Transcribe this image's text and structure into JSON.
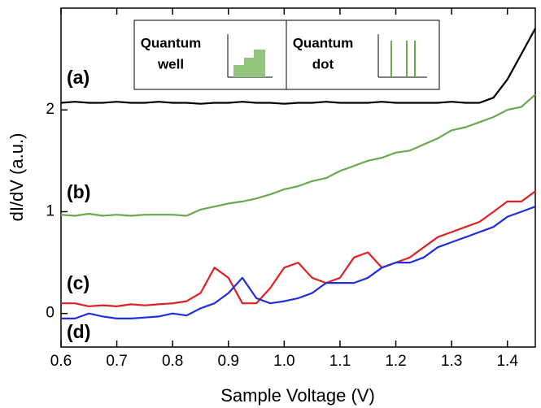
{
  "chart_data": {
    "type": "line",
    "x_label": "Sample Voltage (V)",
    "y_label": "dI/dV (a.u.)",
    "xlim": [
      0.6,
      1.45
    ],
    "ylim": [
      -0.33,
      3.0
    ],
    "xticks": [
      0.6,
      0.7,
      0.8,
      0.9,
      {
        "value": 1,
        "label": "1.0"
      },
      1.1,
      1.2,
      1.3,
      1.4
    ],
    "yticks": [
      0,
      1,
      2
    ],
    "x": [
      0.6,
      0.625,
      0.65,
      0.675,
      0.7,
      0.725,
      0.75,
      0.775,
      0.8,
      0.825,
      0.85,
      0.875,
      0.9,
      0.925,
      0.95,
      0.975,
      1.0,
      1.025,
      1.05,
      1.075,
      1.1,
      1.125,
      1.15,
      1.175,
      1.2,
      1.225,
      1.25,
      1.275,
      1.3,
      1.325,
      1.35,
      1.375,
      1.4,
      1.425,
      1.45
    ],
    "series": [
      {
        "name": "(a)",
        "color": "#000000",
        "values": [
          2.07,
          2.08,
          2.07,
          2.07,
          2.08,
          2.07,
          2.07,
          2.08,
          2.07,
          2.07,
          2.06,
          2.07,
          2.07,
          2.08,
          2.07,
          2.07,
          2.06,
          2.07,
          2.07,
          2.08,
          2.07,
          2.07,
          2.07,
          2.08,
          2.07,
          2.07,
          2.07,
          2.07,
          2.08,
          2.07,
          2.07,
          2.12,
          2.3,
          2.55,
          2.8
        ]
      },
      {
        "name": "(b)",
        "color": "#6aa84f",
        "values": [
          0.97,
          0.96,
          0.98,
          0.96,
          0.97,
          0.96,
          0.97,
          0.97,
          0.97,
          0.96,
          1.02,
          1.05,
          1.08,
          1.1,
          1.13,
          1.17,
          1.22,
          1.25,
          1.3,
          1.33,
          1.4,
          1.45,
          1.5,
          1.53,
          1.58,
          1.6,
          1.66,
          1.72,
          1.8,
          1.83,
          1.88,
          1.93,
          2.0,
          2.03,
          2.15
        ]
      },
      {
        "name": "(c)",
        "color": "#e02020",
        "values": [
          0.1,
          0.1,
          0.07,
          0.08,
          0.07,
          0.09,
          0.08,
          0.09,
          0.1,
          0.12,
          0.2,
          0.45,
          0.35,
          0.1,
          0.1,
          0.25,
          0.45,
          0.5,
          0.35,
          0.3,
          0.35,
          0.55,
          0.6,
          0.45,
          0.5,
          0.55,
          0.65,
          0.75,
          0.8,
          0.85,
          0.9,
          1.0,
          1.1,
          1.1,
          1.2
        ]
      },
      {
        "name": "(d)",
        "color": "#1f2fe0",
        "values": [
          -0.05,
          -0.05,
          0,
          -0.03,
          -0.05,
          -0.05,
          -0.04,
          -0.03,
          0,
          -0.02,
          0.05,
          0.1,
          0.2,
          0.35,
          0.15,
          0.1,
          0.12,
          0.15,
          0.2,
          0.3,
          0.3,
          0.3,
          0.35,
          0.45,
          0.5,
          0.5,
          0.55,
          0.65,
          0.7,
          0.75,
          0.8,
          0.85,
          0.95,
          1.0,
          1.05
        ]
      }
    ],
    "inset": [
      {
        "lines": [
          "Quantum",
          "well"
        ]
      },
      {
        "lines": [
          "Quantum",
          "dot"
        ]
      }
    ]
  }
}
